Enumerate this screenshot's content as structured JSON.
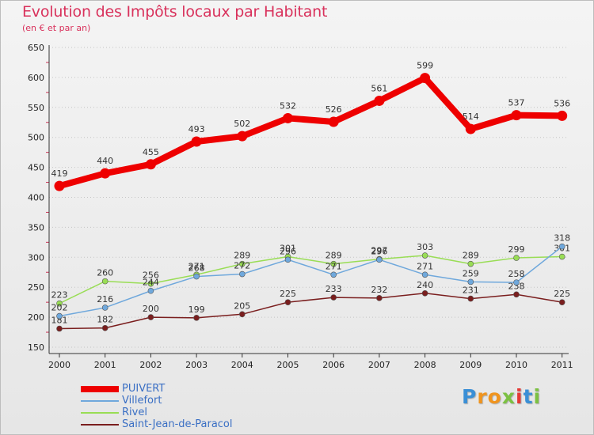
{
  "header": {
    "title": "Evolution des Impôts locaux par Habitant",
    "subtitle": "(en € et par an)"
  },
  "logo": {
    "text": "Proxiti",
    "letters": [
      "P",
      "r",
      "o",
      "x",
      "i",
      "t",
      "i"
    ],
    "letter_colors": [
      "#3a8fd6",
      "#f0941e",
      "#f0941e",
      "#7cc142",
      "#e53935",
      "#3a8fd6",
      "#7cc142"
    ]
  },
  "chart_data": {
    "type": "line",
    "title": "Evolution des Impôts locaux par Habitant",
    "subtitle": "(en € et par an)",
    "xlabel": "",
    "ylabel": "",
    "categories": [
      "2000",
      "2001",
      "2002",
      "2003",
      "2004",
      "2005",
      "2006",
      "2007",
      "2008",
      "2009",
      "2010",
      "2011"
    ],
    "ylim": [
      150,
      650
    ],
    "yticks": [
      150,
      200,
      250,
      300,
      350,
      400,
      450,
      500,
      550,
      600,
      650
    ],
    "grid": "horizontal dotted",
    "legend_position": "bottom-left",
    "series": [
      {
        "name": "PUIVERT",
        "color": "#ee0000",
        "values": [
          419,
          440,
          455,
          493,
          502,
          532,
          526,
          561,
          599,
          514,
          537,
          536
        ]
      },
      {
        "name": "Villefort",
        "color": "#6fa8dc",
        "values": [
          202,
          216,
          244,
          268,
          272,
          296,
          271,
          296,
          271,
          259,
          258,
          318
        ]
      },
      {
        "name": "Rivel",
        "color": "#99dd55",
        "values": [
          223,
          260,
          256,
          271,
          289,
          301,
          289,
          297,
          303,
          289,
          299,
          301
        ]
      },
      {
        "name": "Saint-Jean-de-Paracol",
        "color": "#7a1e1e",
        "values": [
          181,
          182,
          200,
          199,
          205,
          225,
          233,
          232,
          240,
          231,
          238,
          225
        ]
      }
    ]
  }
}
